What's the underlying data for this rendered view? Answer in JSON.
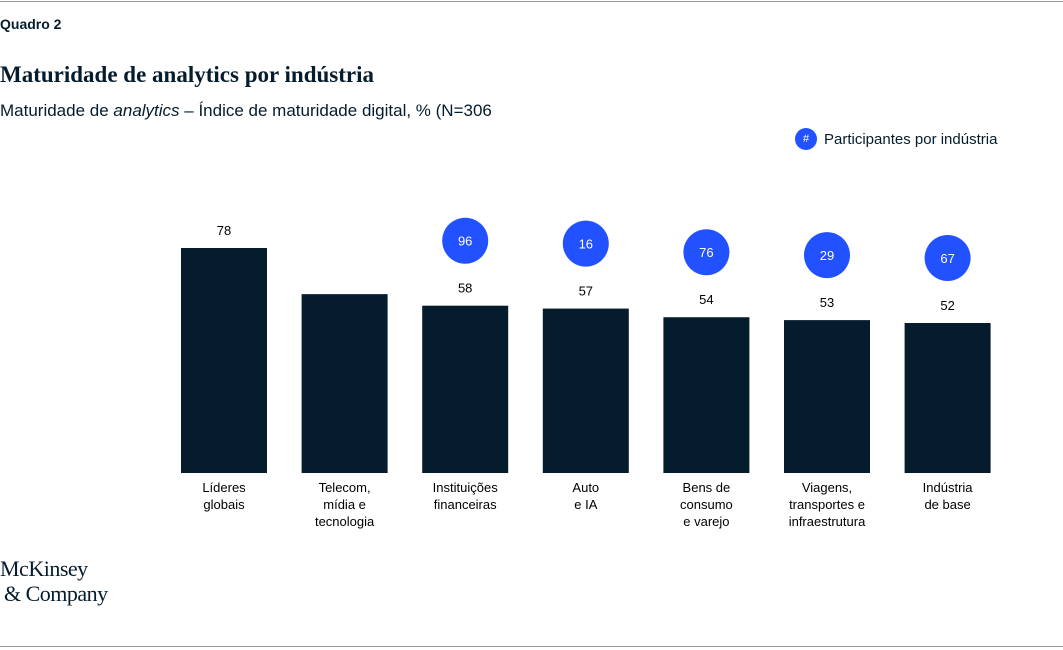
{
  "header": {
    "kicker": "Quadro 2",
    "title": "Maturidade de analytics por indústria",
    "subtitle_pre": "Maturidade de ",
    "subtitle_italic": "analytics",
    "subtitle_post": " – Índice de maturidade digital, % (N=306"
  },
  "legend": {
    "symbol": "#",
    "label": "Participantes por indústria"
  },
  "logo": {
    "line1": "McKinsey",
    "line2": "& Company"
  },
  "colors": {
    "bar": "#051c2c",
    "bubble": "#2251ff"
  },
  "chart_data": {
    "type": "bar",
    "title": "Maturidade de analytics por indústria",
    "categories": [
      [
        "Líderes",
        "globais"
      ],
      [
        "Telecom,",
        "mídia e",
        "tecnologia"
      ],
      [
        "Instituições",
        "financeiras"
      ],
      [
        "Auto",
        "e IA"
      ],
      [
        "Bens de",
        "consumo",
        "e varejo"
      ],
      [
        "Viagens,",
        "transportes e",
        "infraestrutura"
      ],
      [
        "Indústria",
        "de base"
      ]
    ],
    "values": [
      78,
      62,
      58,
      57,
      54,
      53,
      52
    ],
    "data_labels": [
      "78",
      null,
      "58",
      "57",
      "54",
      "53",
      "52"
    ],
    "participants": [
      null,
      null,
      "96",
      "16",
      "76",
      "29",
      "67"
    ],
    "ylim": [
      0,
      100
    ],
    "grid": false,
    "legend_position": "top-right"
  }
}
